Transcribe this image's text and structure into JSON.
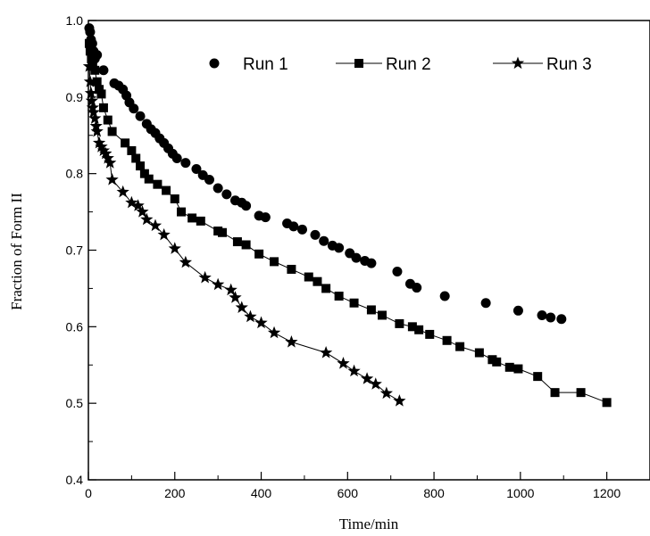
{
  "chart_data": {
    "type": "scatter",
    "title": "",
    "xlabel": "Time/min",
    "ylabel": "Fraction of Form II",
    "xlim": [
      0,
      1300
    ],
    "ylim": [
      0.4,
      1.0
    ],
    "xticks": [
      0,
      200,
      400,
      600,
      800,
      1000,
      1200
    ],
    "yticks": [
      0.4,
      0.5,
      0.6,
      0.7,
      0.8,
      0.9,
      1.0
    ],
    "xtick_labels": [
      "0",
      "200",
      "400",
      "600",
      "800",
      "1000",
      "1200"
    ],
    "ytick_labels": [
      "0.4",
      "0.5",
      "0.6",
      "0.7",
      "0.8",
      "0.9",
      "1.0"
    ],
    "grid": false,
    "legend_position": "top",
    "series": [
      {
        "name": "Run 1",
        "marker": "circle",
        "line": false,
        "color": "#000000",
        "points": [
          [
            2,
            0.99
          ],
          [
            4,
            0.985
          ],
          [
            6,
            0.975
          ],
          [
            9,
            0.97
          ],
          [
            12,
            0.96
          ],
          [
            15,
            0.95
          ],
          [
            20,
            0.955
          ],
          [
            35,
            0.935
          ],
          [
            60,
            0.918
          ],
          [
            70,
            0.915
          ],
          [
            80,
            0.91
          ],
          [
            88,
            0.902
          ],
          [
            95,
            0.893
          ],
          [
            105,
            0.885
          ],
          [
            120,
            0.875
          ],
          [
            135,
            0.865
          ],
          [
            145,
            0.858
          ],
          [
            155,
            0.853
          ],
          [
            165,
            0.846
          ],
          [
            175,
            0.84
          ],
          [
            185,
            0.833
          ],
          [
            195,
            0.826
          ],
          [
            205,
            0.82
          ],
          [
            225,
            0.814
          ],
          [
            250,
            0.806
          ],
          [
            265,
            0.798
          ],
          [
            280,
            0.792
          ],
          [
            300,
            0.781
          ],
          [
            320,
            0.773
          ],
          [
            340,
            0.765
          ],
          [
            355,
            0.762
          ],
          [
            365,
            0.758
          ],
          [
            395,
            0.745
          ],
          [
            410,
            0.743
          ],
          [
            460,
            0.735
          ],
          [
            475,
            0.731
          ],
          [
            495,
            0.727
          ],
          [
            525,
            0.72
          ],
          [
            545,
            0.712
          ],
          [
            565,
            0.706
          ],
          [
            580,
            0.703
          ],
          [
            605,
            0.696
          ],
          [
            620,
            0.69
          ],
          [
            640,
            0.686
          ],
          [
            655,
            0.683
          ],
          [
            715,
            0.672
          ],
          [
            745,
            0.656
          ],
          [
            760,
            0.651
          ],
          [
            825,
            0.64
          ],
          [
            920,
            0.631
          ],
          [
            995,
            0.621
          ],
          [
            1050,
            0.615
          ],
          [
            1070,
            0.612
          ],
          [
            1095,
            0.61
          ]
        ]
      },
      {
        "name": "Run 2",
        "marker": "square",
        "line": true,
        "color": "#000000",
        "points": [
          [
            2,
            0.97
          ],
          [
            4,
            0.96
          ],
          [
            7,
            0.95
          ],
          [
            10,
            0.94
          ],
          [
            15,
            0.935
          ],
          [
            20,
            0.92
          ],
          [
            25,
            0.91
          ],
          [
            30,
            0.904
          ],
          [
            35,
            0.886
          ],
          [
            45,
            0.87
          ],
          [
            55,
            0.855
          ],
          [
            85,
            0.84
          ],
          [
            100,
            0.83
          ],
          [
            110,
            0.82
          ],
          [
            120,
            0.81
          ],
          [
            130,
            0.8
          ],
          [
            140,
            0.793
          ],
          [
            160,
            0.786
          ],
          [
            180,
            0.778
          ],
          [
            200,
            0.767
          ],
          [
            215,
            0.75
          ],
          [
            240,
            0.742
          ],
          [
            260,
            0.738
          ],
          [
            300,
            0.725
          ],
          [
            310,
            0.723
          ],
          [
            345,
            0.711
          ],
          [
            365,
            0.707
          ],
          [
            395,
            0.695
          ],
          [
            430,
            0.685
          ],
          [
            470,
            0.675
          ],
          [
            510,
            0.665
          ],
          [
            530,
            0.659
          ],
          [
            550,
            0.65
          ],
          [
            580,
            0.64
          ],
          [
            615,
            0.631
          ],
          [
            655,
            0.622
          ],
          [
            680,
            0.615
          ],
          [
            720,
            0.604
          ],
          [
            750,
            0.6
          ],
          [
            765,
            0.596
          ],
          [
            790,
            0.59
          ],
          [
            830,
            0.582
          ],
          [
            860,
            0.574
          ],
          [
            905,
            0.566
          ],
          [
            935,
            0.557
          ],
          [
            945,
            0.554
          ],
          [
            975,
            0.547
          ],
          [
            995,
            0.545
          ],
          [
            1040,
            0.535
          ],
          [
            1080,
            0.514
          ],
          [
            1140,
            0.514
          ],
          [
            1200,
            0.501
          ]
        ]
      },
      {
        "name": "Run 3",
        "marker": "star",
        "line": true,
        "color": "#000000",
        "points": [
          [
            2,
            0.94
          ],
          [
            4,
            0.92
          ],
          [
            6,
            0.905
          ],
          [
            8,
            0.895
          ],
          [
            10,
            0.886
          ],
          [
            12,
            0.88
          ],
          [
            15,
            0.872
          ],
          [
            18,
            0.862
          ],
          [
            20,
            0.855
          ],
          [
            25,
            0.84
          ],
          [
            30,
            0.835
          ],
          [
            35,
            0.83
          ],
          [
            40,
            0.826
          ],
          [
            45,
            0.82
          ],
          [
            50,
            0.814
          ],
          [
            55,
            0.792
          ],
          [
            80,
            0.776
          ],
          [
            100,
            0.762
          ],
          [
            115,
            0.758
          ],
          [
            125,
            0.75
          ],
          [
            135,
            0.74
          ],
          [
            155,
            0.732
          ],
          [
            175,
            0.72
          ],
          [
            200,
            0.702
          ],
          [
            225,
            0.684
          ],
          [
            270,
            0.664
          ],
          [
            300,
            0.655
          ],
          [
            330,
            0.648
          ],
          [
            340,
            0.638
          ],
          [
            355,
            0.625
          ],
          [
            375,
            0.613
          ],
          [
            400,
            0.605
          ],
          [
            430,
            0.592
          ],
          [
            470,
            0.58
          ],
          [
            550,
            0.566
          ],
          [
            590,
            0.552
          ],
          [
            615,
            0.542
          ],
          [
            645,
            0.532
          ],
          [
            665,
            0.525
          ],
          [
            690,
            0.513
          ],
          [
            720,
            0.503
          ]
        ]
      }
    ]
  }
}
